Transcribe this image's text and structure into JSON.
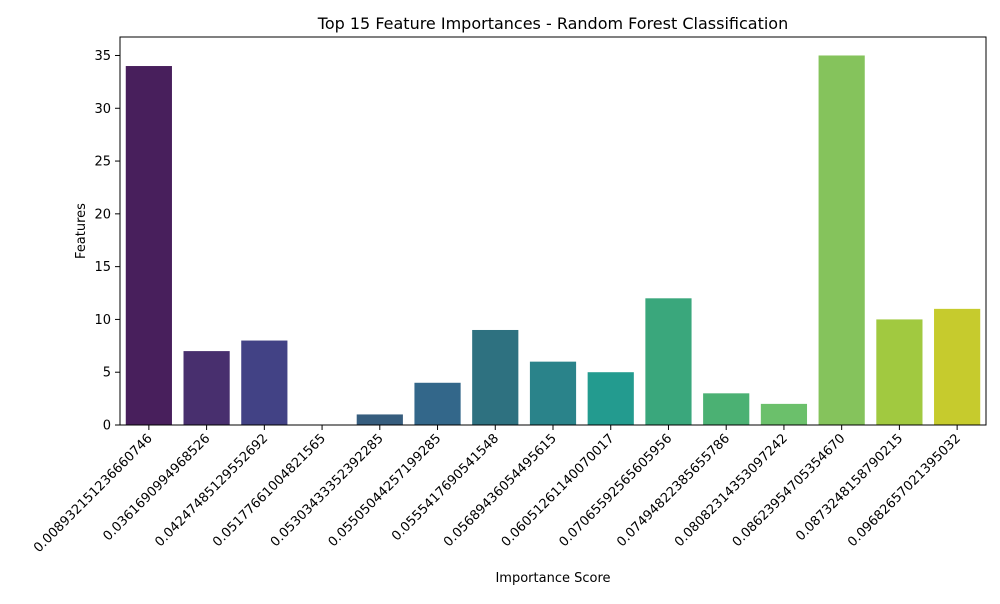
{
  "chart_data": {
    "type": "bar",
    "title": "Top 15 Feature Importances - Random Forest Classification",
    "xlabel": "Importance Score",
    "ylabel": "Features",
    "categories": [
      "0.008932151236660746",
      "0.0361690994968526",
      "0.04247485129552692",
      "0.05177661004821565",
      "0.05303433352392285",
      "0.05505044257199285",
      "0.0555417690541548",
      "0.05689436054495615",
      "0.06051261140070017",
      "0.07065592565605956",
      "0.07494822385655786",
      "0.08082314353097242",
      "0.08623954705354670",
      "0.0873248158790215",
      "0.09682657021395032"
    ],
    "values": [
      34,
      7,
      8,
      0,
      1,
      4,
      9,
      6,
      5,
      12,
      3,
      2,
      35,
      10,
      11
    ],
    "colors": [
      "#481f5c",
      "#482f6e",
      "#424285",
      "#3a5a8c",
      "#365d7e",
      "#33678a",
      "#2e7180",
      "#2a838a",
      "#239b8f",
      "#3aa77c",
      "#4bb173",
      "#6bc06b",
      "#85c35c",
      "#a1c940",
      "#c6cb2d"
    ],
    "ylim": [
      0,
      36.75
    ],
    "yticks": [
      0,
      5,
      10,
      15,
      20,
      25,
      30,
      35
    ],
    "grid": false,
    "legend": "none"
  }
}
